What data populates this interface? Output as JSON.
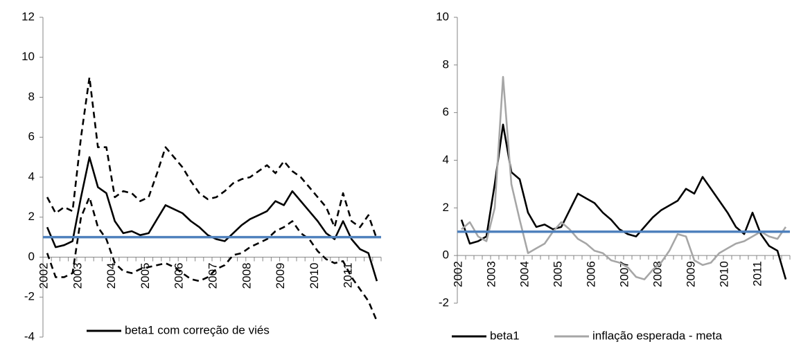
{
  "chart_data": [
    {
      "type": "line",
      "categories": [
        "2002",
        null,
        null,
        null,
        "2003",
        null,
        null,
        null,
        "2004",
        null,
        null,
        null,
        "2005",
        null,
        null,
        null,
        "2006",
        null,
        null,
        null,
        "2007",
        null,
        null,
        null,
        "2008",
        null,
        null,
        null,
        "2009",
        null,
        null,
        null,
        "2010",
        null,
        null,
        null,
        "2011",
        null,
        null,
        null
      ],
      "series": [
        {
          "name": "beta1 com correção de viés",
          "color": "#000000",
          "values": [
            1.5,
            0.5,
            0.6,
            0.8,
            3,
            5,
            3.5,
            3.2,
            1.8,
            1.2,
            1.3,
            1.1,
            1.2,
            1.9,
            2.6,
            2.4,
            2.2,
            1.8,
            1.5,
            1.1,
            0.9,
            0.8,
            1.2,
            1.6,
            1.9,
            2.1,
            2.3,
            2.8,
            2.6,
            3.3,
            2.8,
            2.3,
            1.8,
            1.2,
            0.9,
            1.8,
            0.9,
            0.4,
            0.2,
            -1.2
          ]
        },
        {
          "color": "#000000",
          "dash": true,
          "values": [
            3,
            2.2,
            2.5,
            2.3,
            6,
            9,
            5.5,
            5.5,
            3,
            3.3,
            3.2,
            2.8,
            3,
            4.2,
            5.5,
            5,
            4.5,
            3.8,
            3.2,
            2.9,
            3,
            3.3,
            3.7,
            3.9,
            4,
            4.3,
            4.6,
            4.2,
            4.8,
            4.3,
            4,
            3.5,
            3,
            2.5,
            1.5,
            3.2,
            1.8,
            1.5,
            2.1,
            0.9
          ]
        },
        {
          "color": "#000000",
          "dash": true,
          "values": [
            0.2,
            -1,
            -1,
            -0.8,
            2,
            3,
            1.5,
            0.9,
            -0.3,
            -0.7,
            -0.8,
            -0.6,
            -0.5,
            -0.4,
            -0.3,
            -0.5,
            -0.8,
            -1.1,
            -1.2,
            -1,
            -0.6,
            -0.4,
            0.1,
            0.2,
            0.5,
            0.7,
            0.9,
            1.3,
            1.5,
            1.8,
            1.2,
            0.9,
            0.3,
            -0.1,
            -0.3,
            -0.2,
            -1,
            -1.6,
            -2.2,
            -3.2
          ]
        }
      ],
      "hline": {
        "value": 1,
        "color": "#4f81bd"
      },
      "ylim": [
        -4,
        12
      ],
      "yticks": [
        -4,
        -2,
        0,
        2,
        4,
        6,
        8,
        10,
        12
      ]
    },
    {
      "type": "line",
      "categories": [
        "2002",
        null,
        null,
        null,
        "2003",
        null,
        null,
        null,
        "2004",
        null,
        null,
        null,
        "2005",
        null,
        null,
        null,
        "2006",
        null,
        null,
        null,
        "2007",
        null,
        null,
        null,
        "2008",
        null,
        null,
        null,
        "2009",
        null,
        null,
        null,
        "2010",
        null,
        null,
        null,
        "2011",
        null,
        null,
        null
      ],
      "series": [
        {
          "name": "beta1",
          "color": "#000000",
          "values": [
            1.5,
            0.5,
            0.6,
            0.8,
            3,
            5.5,
            3.5,
            3.2,
            1.8,
            1.2,
            1.3,
            1.1,
            1.2,
            1.9,
            2.6,
            2.4,
            2.2,
            1.8,
            1.5,
            1.1,
            0.9,
            0.8,
            1.2,
            1.6,
            1.9,
            2.1,
            2.3,
            2.8,
            2.6,
            3.3,
            2.8,
            2.3,
            1.8,
            1.2,
            0.9,
            1.8,
            0.9,
            0.4,
            0.2,
            -1
          ]
        },
        {
          "name": "inflação esperada - meta",
          "color": "#a6a6a6",
          "values": [
            1.1,
            1.4,
            0.8,
            0.6,
            2,
            7.5,
            3,
            1.5,
            0.1,
            0.3,
            0.5,
            1,
            1.4,
            1.1,
            0.7,
            0.5,
            0.2,
            0.1,
            -0.2,
            -0.3,
            -0.5,
            -0.9,
            -1,
            -0.6,
            -0.3,
            0.2,
            0.9,
            0.8,
            -0.2,
            -0.4,
            -0.3,
            0.1,
            0.3,
            0.5,
            0.6,
            0.8,
            1,
            0.8,
            0.7,
            1.2
          ]
        }
      ],
      "hline": {
        "value": 1,
        "color": "#4f81bd"
      },
      "ylim": [
        -2,
        10
      ],
      "yticks": [
        -2,
        0,
        2,
        4,
        6,
        8,
        10
      ]
    }
  ]
}
